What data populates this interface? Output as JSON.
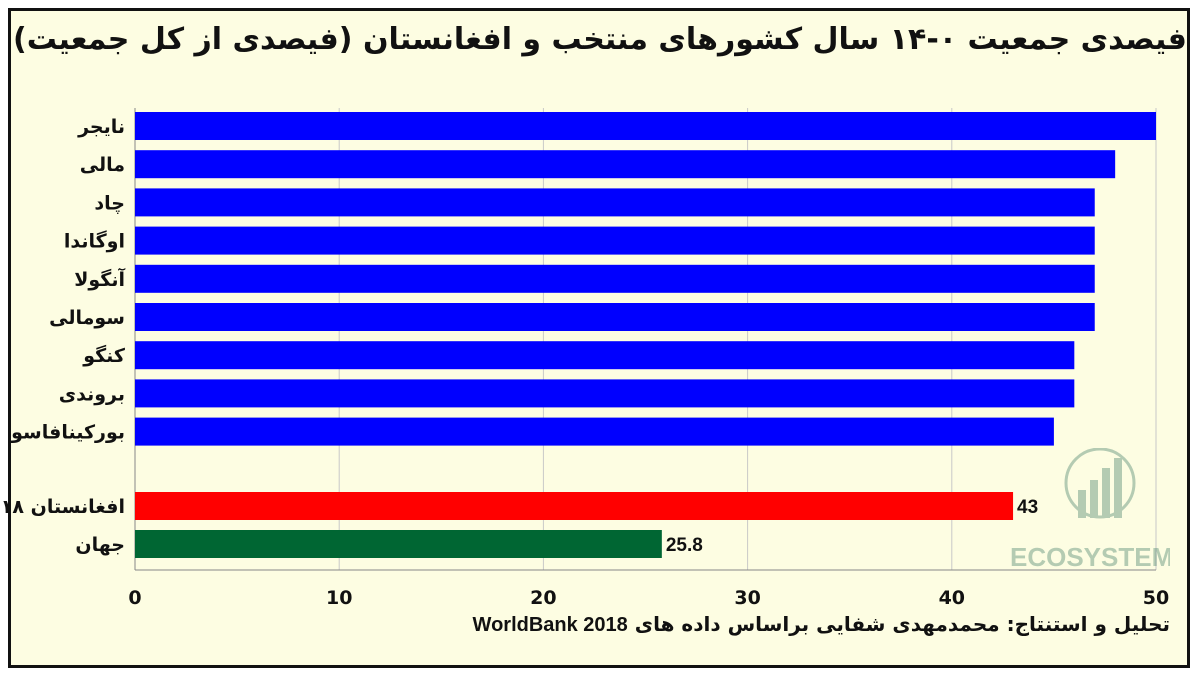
{
  "chart_data": {
    "type": "bar",
    "orientation": "horizontal",
    "title": "فیصدی جمعیت ۰-۱۴ سال کشورهای منتخب و افغانستان (فیصدی از کل جمعیت)",
    "categories": [
      "نایجر",
      "مالی",
      "چاد",
      "اوگاندا",
      "آنگولا",
      "سومالی",
      "کنگو",
      "بروندی",
      "بورکینافاسو",
      "افغانستان ۱۸",
      "جهان"
    ],
    "values": [
      50,
      48,
      47,
      47,
      47,
      47,
      46,
      46,
      45,
      43,
      25.8
    ],
    "bar_colors": [
      "#0000ff",
      "#0000ff",
      "#0000ff",
      "#0000ff",
      "#0000ff",
      "#0000ff",
      "#0000ff",
      "#0000ff",
      "#0000ff",
      "#ff0000",
      "#006633"
    ],
    "data_labels": [
      null,
      null,
      null,
      null,
      null,
      null,
      null,
      null,
      null,
      "43",
      "25.8"
    ],
    "xlim": [
      0,
      50
    ],
    "xticks": [
      "0",
      "10",
      "20",
      "30",
      "40",
      "50"
    ],
    "xlabel": "",
    "ylabel": "",
    "grid": "vertical",
    "legend": "none"
  },
  "caption": {
    "line1": "تحلیل و استنتاج: محمدمهدی شفایی براساس داده های",
    "line2": "WorldBank 2018"
  },
  "watermark": {
    "text": "ECOSYSTEM",
    "color": "#2f6f5a"
  }
}
